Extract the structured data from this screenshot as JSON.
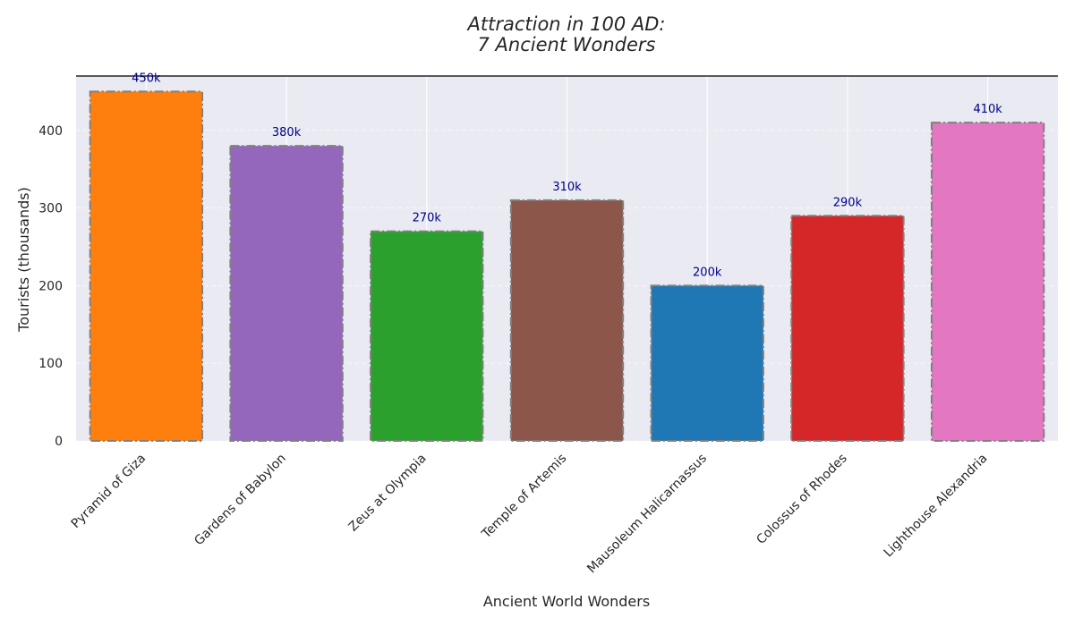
{
  "chart_data": {
    "type": "bar",
    "title_lines": [
      "Attraction in 100 AD:",
      "7 Ancient Wonders"
    ],
    "xlabel": "Ancient World Wonders",
    "ylabel": "Tourists (thousands)",
    "ylim": [
      0,
      470
    ],
    "yticks": [
      0,
      100,
      200,
      300,
      400
    ],
    "grid": true,
    "categories": [
      "Pyramid of Giza",
      "Gardens of Babylon",
      "Zeus at Olympia",
      "Temple of Artemis",
      "Mausoleum Halicarnassus",
      "Colossus of Rhodes",
      "Lighthouse Alexandria"
    ],
    "values": [
      450,
      380,
      270,
      310,
      200,
      290,
      410
    ],
    "data_labels": [
      "450k",
      "380k",
      "270k",
      "310k",
      "200k",
      "290k",
      "410k"
    ],
    "colors": [
      "#ff7f0e",
      "#9467bd",
      "#2ca02c",
      "#8c564b",
      "#1f77b4",
      "#d62728",
      "#e377c2"
    ],
    "plot_background": "#eaeaf2",
    "bar_edge_color": "#808080",
    "data_label_color": "#00008b"
  }
}
